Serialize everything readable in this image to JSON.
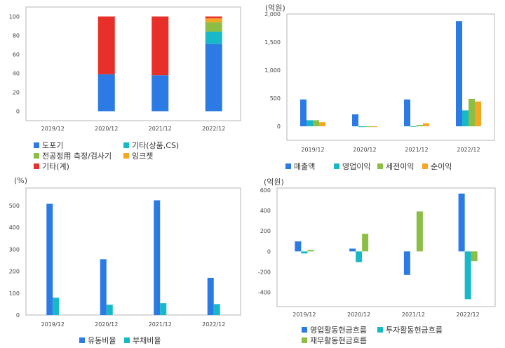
{
  "chart_data": [
    {
      "id": "c1",
      "type": "bar",
      "stacked": true,
      "title": "",
      "unit": "",
      "categories": [
        "2019/12",
        "2020/12",
        "2021/12",
        "2022/12"
      ],
      "ylim": [
        -10,
        110
      ],
      "yticks": [
        0,
        20,
        40,
        60,
        80,
        100
      ],
      "grid": false,
      "legend_position": "bottom",
      "series": [
        {
          "name": "도포기",
          "color": "#2c7be5",
          "values": [
            0,
            39,
            38,
            71
          ]
        },
        {
          "name": "기타(상품,CS)",
          "color": "#17b9c8",
          "values": [
            0,
            0,
            0,
            13
          ]
        },
        {
          "name": "전공정用 측정/검사기",
          "color": "#8cbe45",
          "values": [
            0,
            0,
            0,
            10
          ]
        },
        {
          "name": "잉크젯",
          "color": "#f5a623",
          "values": [
            0,
            0,
            0,
            4
          ]
        },
        {
          "name": "기타(계)",
          "color": "#e8302a",
          "values": [
            0,
            61,
            62,
            2
          ]
        }
      ]
    },
    {
      "id": "c2",
      "type": "bar",
      "stacked": false,
      "title": "",
      "unit": "(억원)",
      "categories": [
        "2019/12",
        "2020/12",
        "2021/12",
        "2022/12"
      ],
      "ylim": [
        -250,
        2000
      ],
      "yticks": [
        0,
        500,
        1000,
        1500,
        2000
      ],
      "ytick_labels": [
        "0",
        "500",
        "1,000",
        "1,500",
        "2,000"
      ],
      "grid": false,
      "legend_position": "bottom",
      "series": [
        {
          "name": "매출액",
          "color": "#2c7be5",
          "values": [
            478,
            213,
            478,
            1873
          ]
        },
        {
          "name": "영업이익",
          "color": "#17b9c8",
          "values": [
            108,
            -15,
            3,
            283
          ]
        },
        {
          "name": "세전이익",
          "color": "#8cbe45",
          "values": [
            108,
            -14,
            24,
            488
          ]
        },
        {
          "name": "순이익",
          "color": "#f5a623",
          "values": [
            73,
            -14,
            54,
            442
          ]
        }
      ]
    },
    {
      "id": "c3",
      "type": "bar",
      "stacked": false,
      "title": "",
      "unit": "(%)",
      "categories": [
        "2019/12",
        "2020/12",
        "2021/12",
        "2022/12"
      ],
      "ylim": [
        0,
        580
      ],
      "yticks": [
        0,
        100,
        200,
        300,
        400,
        500
      ],
      "grid": false,
      "legend_position": "bottom",
      "series": [
        {
          "name": "유동비율",
          "color": "#2c7be5",
          "values": [
            508,
            255,
            524,
            170
          ]
        },
        {
          "name": "부채비율",
          "color": "#17b9c8",
          "values": [
            79,
            47,
            54,
            50
          ]
        }
      ]
    },
    {
      "id": "c4",
      "type": "bar",
      "stacked": false,
      "title": "",
      "unit": "(억원)",
      "categories": [
        "2019/12",
        "2020/12",
        "2021/12",
        "2022/12"
      ],
      "ylim": [
        -540,
        620
      ],
      "yticks": [
        -400,
        -200,
        0,
        200,
        400,
        600
      ],
      "grid": false,
      "legend_position": "bottom",
      "series": [
        {
          "name": "영업활동현금흐름",
          "color": "#2c7be5",
          "values": [
            98,
            27,
            -230,
            566
          ]
        },
        {
          "name": "투자활동현금흐름",
          "color": "#17b9c8",
          "values": [
            -20,
            -105,
            0,
            -467
          ]
        },
        {
          "name": "재무활동현금흐름",
          "color": "#8cbe45",
          "values": [
            15,
            172,
            391,
            -95
          ]
        }
      ]
    }
  ]
}
